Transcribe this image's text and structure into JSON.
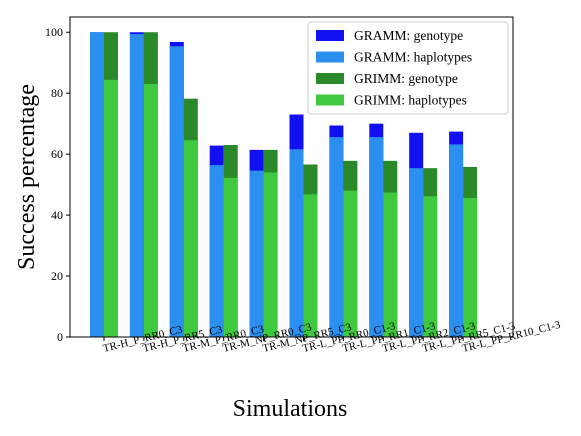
{
  "chart_data": {
    "type": "bar",
    "categories": [
      "TR-H_P_RR0_C3",
      "TR-H_P_RR5_C3",
      "TR-M_P_RR0_C3",
      "TR-M_NP_RR0_C3",
      "TR-M_NP_RR5_C3",
      "TR-L_PP_RR0_C1-3",
      "TR-L_PP_RR1_C1-3",
      "TR-L_PP_RR2_C1-3",
      "TR-L_PP_RR5_C1-3",
      "TR-L_PP_RR10_C1-3"
    ],
    "series": [
      {
        "name": "GRAMM: genotype",
        "color": "#1010f0",
        "group": "GRAMM",
        "values": [
          100,
          100,
          96.8,
          62.8,
          61.4,
          73.0,
          69.4,
          70.0,
          67.0,
          67.4
        ]
      },
      {
        "name": "GRAMM: haplotypes",
        "color": "#2b8ff0",
        "group": "GRAMM",
        "values": [
          100,
          99.4,
          95.4,
          56.4,
          54.6,
          61.6,
          65.6,
          65.6,
          55.4,
          63.2
        ]
      },
      {
        "name": "GRIMM: genotype",
        "color": "#2a8a2a",
        "group": "GRIMM",
        "values": [
          100,
          100,
          78.2,
          63.0,
          61.4,
          56.6,
          57.8,
          57.8,
          55.4,
          55.8
        ]
      },
      {
        "name": "GRIMM: haplotypes",
        "color": "#3ec93e",
        "group": "GRIMM",
        "values": [
          84.4,
          83.0,
          64.6,
          52.2,
          54.0,
          46.8,
          48.0,
          47.4,
          46.2,
          45.6
        ]
      }
    ],
    "xlabel": "Simulations",
    "ylabel": "Success percentage",
    "ylim": [
      0,
      105
    ],
    "yticks": [
      0,
      20,
      40,
      60,
      80,
      100
    ],
    "grid": false,
    "legend_position": "top-right"
  }
}
